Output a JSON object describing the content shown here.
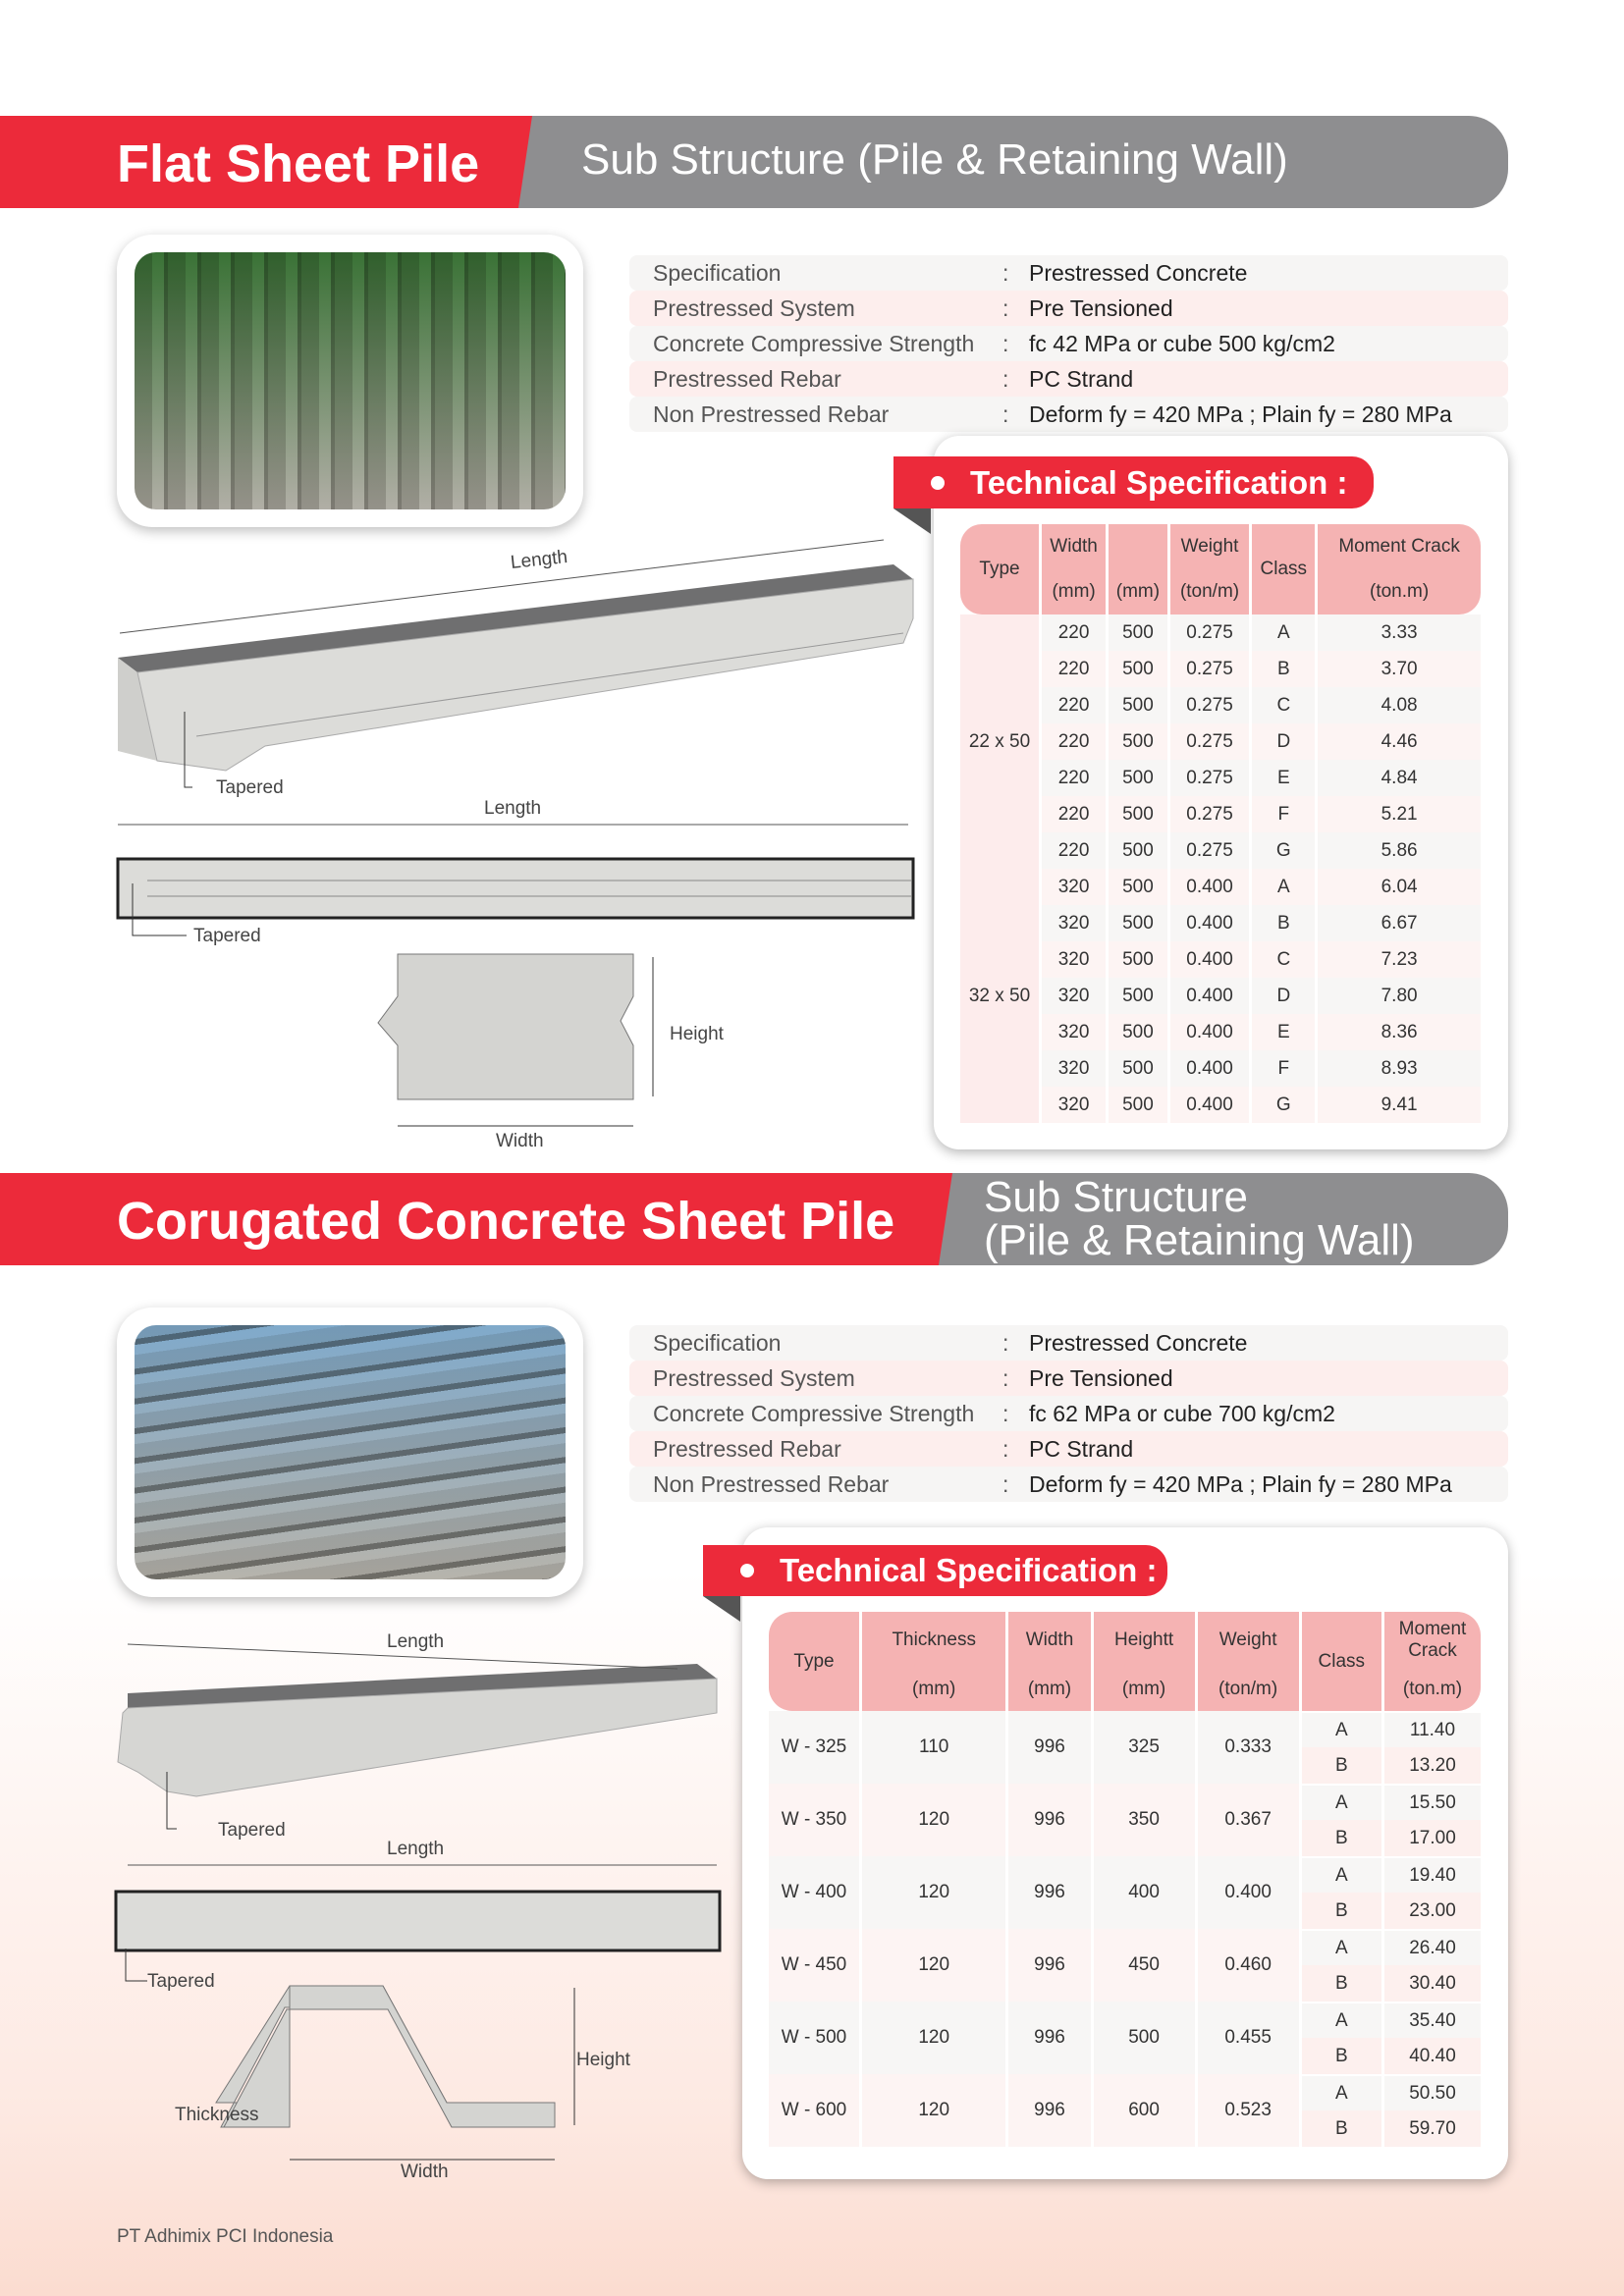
{
  "section1": {
    "title": "Flat Sheet Pile",
    "subtitle": "Sub Structure (Pile & Retaining Wall)",
    "specs": [
      {
        "key": "Specification",
        "value": "Prestressed Concrete"
      },
      {
        "key": "Prestressed System",
        "value": "Pre Tensioned"
      },
      {
        "key": "Concrete Compressive Strength",
        "value": "fc 42 MPa or cube 500 kg/cm2"
      },
      {
        "key": "Prestressed Rebar",
        "value": "PC Strand"
      },
      {
        "key": "Non Prestressed Rebar",
        "value": "Deform fy = 420 MPa ; Plain fy = 280 MPa"
      }
    ],
    "tech_title": "Technical Specification :",
    "table": {
      "headers": {
        "type": "Type",
        "width": "Width",
        "blank": "",
        "weight": "Weight",
        "class": "Class",
        "moment": "Moment Crack"
      },
      "units": {
        "width": "(mm)",
        "blank": "(mm)",
        "weight": "(ton/m)",
        "moment": "(ton.m)"
      },
      "groups": [
        {
          "type": "22 x 50",
          "rows": [
            [
              "220",
              "500",
              "0.275",
              "A",
              "3.33"
            ],
            [
              "220",
              "500",
              "0.275",
              "B",
              "3.70"
            ],
            [
              "220",
              "500",
              "0.275",
              "C",
              "4.08"
            ],
            [
              "220",
              "500",
              "0.275",
              "D",
              "4.46"
            ],
            [
              "220",
              "500",
              "0.275",
              "E",
              "4.84"
            ],
            [
              "220",
              "500",
              "0.275",
              "F",
              "5.21"
            ],
            [
              "220",
              "500",
              "0.275",
              "G",
              "5.86"
            ]
          ]
        },
        {
          "type": "32 x 50",
          "rows": [
            [
              "320",
              "500",
              "0.400",
              "A",
              "6.04"
            ],
            [
              "320",
              "500",
              "0.400",
              "B",
              "6.67"
            ],
            [
              "320",
              "500",
              "0.400",
              "C",
              "7.23"
            ],
            [
              "320",
              "500",
              "0.400",
              "D",
              "7.80"
            ],
            [
              "320",
              "500",
              "0.400",
              "E",
              "8.36"
            ],
            [
              "320",
              "500",
              "0.400",
              "F",
              "8.93"
            ],
            [
              "320",
              "500",
              "0.400",
              "G",
              "9.41"
            ]
          ]
        }
      ]
    },
    "diagram": {
      "length": "Length",
      "tapered": "Tapered",
      "length2": "Length",
      "tapered2": "Tapered",
      "height": "Height",
      "width": "Width"
    }
  },
  "section2": {
    "title": "Corugated Concrete Sheet Pile",
    "subtitle_line1": "Sub Structure",
    "subtitle_line2": "(Pile & Retaining Wall)",
    "specs": [
      {
        "key": "Specification",
        "value": "Prestressed Concrete"
      },
      {
        "key": "Prestressed System",
        "value": "Pre Tensioned"
      },
      {
        "key": "Concrete Compressive Strength",
        "value": "fc 62 MPa or cube 700 kg/cm2"
      },
      {
        "key": "Prestressed Rebar",
        "value": "PC Strand"
      },
      {
        "key": "Non Prestressed Rebar",
        "value": "Deform fy = 420 MPa ; Plain fy = 280 MPa"
      }
    ],
    "tech_title": "Technical Specification :",
    "table": {
      "headers": {
        "type": "Type",
        "thickness": "Thickness",
        "width": "Width",
        "height": "Heightt",
        "weight": "Weight",
        "class": "Class",
        "moment": "Moment Crack"
      },
      "units": {
        "thickness": "(mm)",
        "width": "(mm)",
        "height": "(mm)",
        "weight": "(ton/m)",
        "moment": "(ton.m)"
      },
      "rows": [
        {
          "type": "W - 325",
          "thickness": "110",
          "width": "996",
          "height": "325",
          "weight": "0.333",
          "classes": [
            [
              "A",
              "11.40"
            ],
            [
              "B",
              "13.20"
            ]
          ]
        },
        {
          "type": "W - 350",
          "thickness": "120",
          "width": "996",
          "height": "350",
          "weight": "0.367",
          "classes": [
            [
              "A",
              "15.50"
            ],
            [
              "B",
              "17.00"
            ]
          ]
        },
        {
          "type": "W - 400",
          "thickness": "120",
          "width": "996",
          "height": "400",
          "weight": "0.400",
          "classes": [
            [
              "A",
              "19.40"
            ],
            [
              "B",
              "23.00"
            ]
          ]
        },
        {
          "type": "W - 450",
          "thickness": "120",
          "width": "996",
          "height": "450",
          "weight": "0.460",
          "classes": [
            [
              "A",
              "26.40"
            ],
            [
              "B",
              "30.40"
            ]
          ]
        },
        {
          "type": "W - 500",
          "thickness": "120",
          "width": "996",
          "height": "500",
          "weight": "0.455",
          "classes": [
            [
              "A",
              "35.40"
            ],
            [
              "B",
              "40.40"
            ]
          ]
        },
        {
          "type": "W - 600",
          "thickness": "120",
          "width": "996",
          "height": "600",
          "weight": "0.523",
          "classes": [
            [
              "A",
              "50.50"
            ],
            [
              "B",
              "59.70"
            ]
          ]
        }
      ]
    },
    "diagram": {
      "length": "Length",
      "tapered": "Tapered",
      "length2": "Length",
      "tapered2": "Tapered",
      "height": "Height",
      "thickness": "Thickness",
      "width": "Width"
    }
  },
  "footer": {
    "company": "PT Adhimix PCI Indonesia"
  },
  "colors": {
    "accent": "#ec2a3a",
    "band_grey": "#8e8e90",
    "table_header": "#f5b3b3"
  }
}
